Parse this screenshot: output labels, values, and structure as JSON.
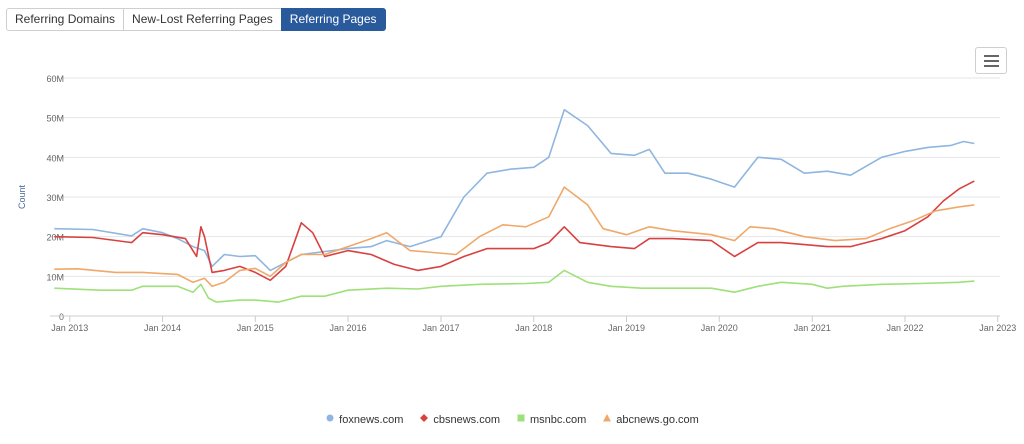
{
  "tabs": [
    {
      "label": "Referring Domains",
      "active": false
    },
    {
      "label": "New-Lost Referring Pages",
      "active": false
    },
    {
      "label": "Referring Pages",
      "active": true
    }
  ],
  "menu_icon": "hamburger-menu-icon",
  "colors": {
    "accent": "#285a9c"
  },
  "chart_data": {
    "type": "line",
    "ylabel": "Count",
    "xlabel": "",
    "title": "",
    "ylim": [
      0,
      60000000
    ],
    "yticks": [
      0,
      10000000,
      20000000,
      30000000,
      40000000,
      50000000,
      60000000
    ],
    "ytick_labels": [
      "0",
      "10M",
      "20M",
      "30M",
      "40M",
      "50M",
      "60M"
    ],
    "xlim": [
      "2012-10-15",
      "2023-01-10"
    ],
    "xticks": [
      "2013-01-01",
      "2014-01-01",
      "2015-01-01",
      "2016-01-01",
      "2017-01-01",
      "2018-01-01",
      "2019-01-01",
      "2020-01-01",
      "2021-01-01",
      "2022-01-01",
      "2023-01-01"
    ],
    "xtick_labels": [
      "Jan 2013",
      "Jan 2014",
      "Jan 2015",
      "Jan 2016",
      "Jan 2017",
      "Jan 2018",
      "Jan 2019",
      "Jan 2020",
      "Jan 2021",
      "Jan 2022",
      "Jan 2023"
    ],
    "legend_position": "bottom",
    "grid": true,
    "series": [
      {
        "name": "foxnews.com",
        "color": "#8fb6e0",
        "marker": "circle",
        "points": [
          [
            "2012-11-01",
            22000000
          ],
          [
            "2013-04-01",
            21800000
          ],
          [
            "2013-09-01",
            20200000
          ],
          [
            "2013-10-15",
            22000000
          ],
          [
            "2014-01-01",
            21000000
          ],
          [
            "2014-03-01",
            19500000
          ],
          [
            "2014-05-01",
            17500000
          ],
          [
            "2014-06-15",
            16500000
          ],
          [
            "2014-07-15",
            12500000
          ],
          [
            "2014-09-01",
            15500000
          ],
          [
            "2014-11-01",
            15000000
          ],
          [
            "2015-01-01",
            15200000
          ],
          [
            "2015-03-01",
            11500000
          ],
          [
            "2015-05-01",
            13500000
          ],
          [
            "2015-07-01",
            15500000
          ],
          [
            "2015-09-01",
            16000000
          ],
          [
            "2016-01-01",
            17000000
          ],
          [
            "2016-04-01",
            17500000
          ],
          [
            "2016-06-01",
            19000000
          ],
          [
            "2016-09-01",
            17500000
          ],
          [
            "2017-01-01",
            20000000
          ],
          [
            "2017-04-01",
            30000000
          ],
          [
            "2017-07-01",
            36000000
          ],
          [
            "2017-10-01",
            37000000
          ],
          [
            "2018-01-01",
            37500000
          ],
          [
            "2018-03-01",
            40000000
          ],
          [
            "2018-05-01",
            52000000
          ],
          [
            "2018-08-01",
            48000000
          ],
          [
            "2018-11-01",
            41000000
          ],
          [
            "2019-02-01",
            40500000
          ],
          [
            "2019-04-01",
            42000000
          ],
          [
            "2019-06-01",
            36000000
          ],
          [
            "2019-09-01",
            36000000
          ],
          [
            "2019-12-01",
            34500000
          ],
          [
            "2020-03-01",
            32500000
          ],
          [
            "2020-06-01",
            40000000
          ],
          [
            "2020-09-01",
            39500000
          ],
          [
            "2020-12-01",
            36000000
          ],
          [
            "2021-03-01",
            36500000
          ],
          [
            "2021-06-01",
            35500000
          ],
          [
            "2021-10-01",
            40000000
          ],
          [
            "2022-01-01",
            41500000
          ],
          [
            "2022-04-01",
            42500000
          ],
          [
            "2022-07-01",
            43000000
          ],
          [
            "2022-08-20",
            44000000
          ],
          [
            "2022-10-01",
            43500000
          ]
        ]
      },
      {
        "name": "cbsnews.com",
        "color": "#d94040",
        "marker": "diamond",
        "points": [
          [
            "2012-11-01",
            20000000
          ],
          [
            "2013-04-01",
            19800000
          ],
          [
            "2013-09-01",
            18500000
          ],
          [
            "2013-10-15",
            21000000
          ],
          [
            "2014-01-01",
            20500000
          ],
          [
            "2014-04-01",
            19500000
          ],
          [
            "2014-05-15",
            15000000
          ],
          [
            "2014-06-01",
            22500000
          ],
          [
            "2014-06-15",
            20000000
          ],
          [
            "2014-07-15",
            11000000
          ],
          [
            "2014-09-01",
            11500000
          ],
          [
            "2014-11-01",
            12500000
          ],
          [
            "2015-01-01",
            11000000
          ],
          [
            "2015-03-01",
            9000000
          ],
          [
            "2015-05-01",
            12500000
          ],
          [
            "2015-07-01",
            23500000
          ],
          [
            "2015-08-15",
            21000000
          ],
          [
            "2015-10-01",
            15000000
          ],
          [
            "2016-01-01",
            16500000
          ],
          [
            "2016-04-01",
            15500000
          ],
          [
            "2016-07-01",
            13000000
          ],
          [
            "2016-10-01",
            11500000
          ],
          [
            "2017-01-01",
            12500000
          ],
          [
            "2017-04-01",
            15000000
          ],
          [
            "2017-07-01",
            17000000
          ],
          [
            "2017-10-01",
            17000000
          ],
          [
            "2018-01-01",
            17000000
          ],
          [
            "2018-03-01",
            18500000
          ],
          [
            "2018-05-01",
            22500000
          ],
          [
            "2018-07-01",
            18500000
          ],
          [
            "2018-11-01",
            17500000
          ],
          [
            "2019-02-01",
            17000000
          ],
          [
            "2019-04-01",
            19500000
          ],
          [
            "2019-07-01",
            19500000
          ],
          [
            "2019-12-01",
            19000000
          ],
          [
            "2020-03-01",
            15000000
          ],
          [
            "2020-06-01",
            18500000
          ],
          [
            "2020-09-01",
            18500000
          ],
          [
            "2020-12-01",
            18000000
          ],
          [
            "2021-03-01",
            17500000
          ],
          [
            "2021-06-01",
            17500000
          ],
          [
            "2021-10-01",
            19500000
          ],
          [
            "2022-01-01",
            21500000
          ],
          [
            "2022-04-01",
            25000000
          ],
          [
            "2022-06-01",
            29000000
          ],
          [
            "2022-08-01",
            32000000
          ],
          [
            "2022-10-01",
            34000000
          ]
        ]
      },
      {
        "name": "msnbc.com",
        "color": "#9ee07a",
        "marker": "square",
        "points": [
          [
            "2012-11-01",
            7000000
          ],
          [
            "2013-05-01",
            6500000
          ],
          [
            "2013-09-01",
            6500000
          ],
          [
            "2013-10-15",
            7500000
          ],
          [
            "2014-03-01",
            7500000
          ],
          [
            "2014-05-01",
            6000000
          ],
          [
            "2014-06-01",
            8000000
          ],
          [
            "2014-07-01",
            4500000
          ],
          [
            "2014-08-01",
            3500000
          ],
          [
            "2014-11-01",
            4000000
          ],
          [
            "2015-01-01",
            4000000
          ],
          [
            "2015-04-01",
            3500000
          ],
          [
            "2015-07-01",
            5000000
          ],
          [
            "2015-10-01",
            5000000
          ],
          [
            "2016-01-01",
            6500000
          ],
          [
            "2016-06-01",
            7000000
          ],
          [
            "2016-10-01",
            6800000
          ],
          [
            "2017-01-01",
            7500000
          ],
          [
            "2017-06-01",
            8000000
          ],
          [
            "2017-12-01",
            8200000
          ],
          [
            "2018-03-01",
            8500000
          ],
          [
            "2018-05-01",
            11500000
          ],
          [
            "2018-08-01",
            8500000
          ],
          [
            "2018-11-01",
            7500000
          ],
          [
            "2019-03-01",
            7000000
          ],
          [
            "2019-06-01",
            7000000
          ],
          [
            "2019-12-01",
            7000000
          ],
          [
            "2020-03-01",
            6000000
          ],
          [
            "2020-06-01",
            7500000
          ],
          [
            "2020-09-01",
            8500000
          ],
          [
            "2021-01-01",
            8000000
          ],
          [
            "2021-03-01",
            7000000
          ],
          [
            "2021-05-01",
            7500000
          ],
          [
            "2021-10-01",
            8000000
          ],
          [
            "2022-03-01",
            8200000
          ],
          [
            "2022-08-01",
            8500000
          ],
          [
            "2022-10-01",
            8800000
          ]
        ]
      },
      {
        "name": "abcnews.go.com",
        "color": "#f0a86a",
        "marker": "triangle",
        "points": [
          [
            "2012-11-01",
            11800000
          ],
          [
            "2013-02-01",
            11900000
          ],
          [
            "2013-07-01",
            11000000
          ],
          [
            "2013-10-15",
            11000000
          ],
          [
            "2014-03-01",
            10500000
          ],
          [
            "2014-05-01",
            8500000
          ],
          [
            "2014-06-15",
            9500000
          ],
          [
            "2014-07-15",
            7500000
          ],
          [
            "2014-09-01",
            8500000
          ],
          [
            "2014-11-01",
            11500000
          ],
          [
            "2015-01-01",
            12000000
          ],
          [
            "2015-03-01",
            10000000
          ],
          [
            "2015-05-01",
            13500000
          ],
          [
            "2015-07-01",
            15500000
          ],
          [
            "2015-10-01",
            15500000
          ],
          [
            "2016-01-01",
            17500000
          ],
          [
            "2016-04-01",
            19500000
          ],
          [
            "2016-06-01",
            21000000
          ],
          [
            "2016-09-01",
            16500000
          ],
          [
            "2016-12-01",
            16000000
          ],
          [
            "2017-03-01",
            15500000
          ],
          [
            "2017-06-01",
            20000000
          ],
          [
            "2017-09-01",
            23000000
          ],
          [
            "2017-12-01",
            22500000
          ],
          [
            "2018-03-01",
            25000000
          ],
          [
            "2018-05-01",
            32500000
          ],
          [
            "2018-08-01",
            28000000
          ],
          [
            "2018-10-01",
            22000000
          ],
          [
            "2019-01-01",
            20500000
          ],
          [
            "2019-04-01",
            22500000
          ],
          [
            "2019-07-01",
            21500000
          ],
          [
            "2019-12-01",
            20500000
          ],
          [
            "2020-03-01",
            19000000
          ],
          [
            "2020-05-01",
            22500000
          ],
          [
            "2020-08-01",
            22000000
          ],
          [
            "2020-12-01",
            20000000
          ],
          [
            "2021-04-01",
            19000000
          ],
          [
            "2021-08-01",
            19500000
          ],
          [
            "2021-11-01",
            22000000
          ],
          [
            "2022-02-01",
            24000000
          ],
          [
            "2022-05-01",
            26500000
          ],
          [
            "2022-08-01",
            27500000
          ],
          [
            "2022-10-01",
            28000000
          ]
        ]
      }
    ]
  }
}
